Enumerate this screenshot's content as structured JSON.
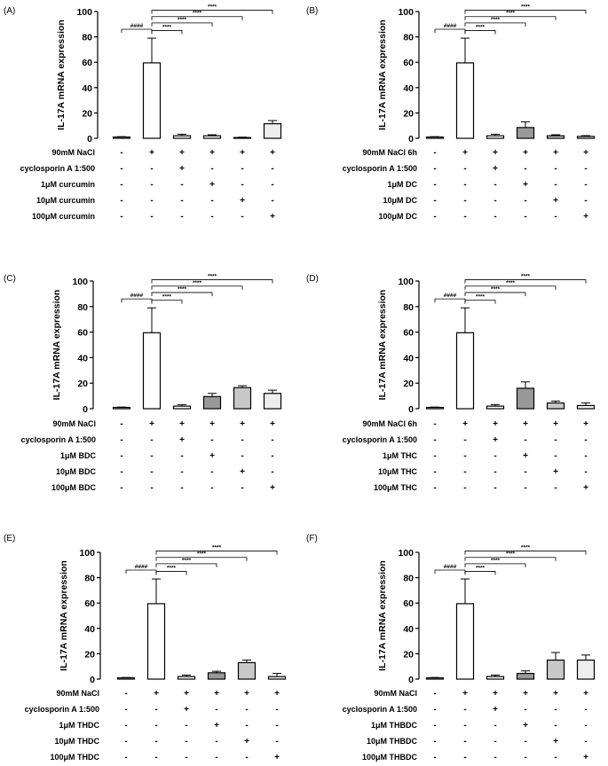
{
  "chart_data": [
    {
      "type": "bar",
      "panel": "(A)",
      "ylabel": "IL-17A mRNA expression",
      "ylim": [
        0,
        100
      ],
      "yticks": [
        0,
        20,
        40,
        60,
        80,
        100
      ],
      "values": [
        1,
        59.5,
        2,
        2,
        0.6,
        11.5
      ],
      "errors": [
        0.3,
        19.5,
        1.2,
        0.8,
        0.3,
        2.5
      ],
      "fills": [
        "#ffffff",
        "#ffffff",
        "#ffffff",
        "#ffffff",
        "#ffffff",
        "#eeeeee"
      ],
      "rows": [
        {
          "label": "90mM NaCl",
          "signs": [
            "-",
            "+",
            "+",
            "+",
            "+",
            "+"
          ]
        },
        {
          "label": "cyclosporin A 1:500",
          "signs": [
            "-",
            "-",
            "+",
            "-",
            "-",
            "-"
          ]
        },
        {
          "label": "1μM  curcumin",
          "signs": [
            "-",
            "-",
            "-",
            "+",
            "-",
            "-"
          ]
        },
        {
          "label": "10μM  curcumin",
          "signs": [
            "-",
            "-",
            "-",
            "-",
            "+",
            "-"
          ]
        },
        {
          "label": "100μM  curcumin",
          "signs": [
            "-",
            "-",
            "-",
            "-",
            "-",
            "+"
          ]
        }
      ],
      "significance": [
        {
          "from": 0,
          "to": 1,
          "label": "####",
          "y": 86
        },
        {
          "from": 1,
          "to": 2,
          "label": "****",
          "y": 85
        },
        {
          "from": 1,
          "to": 3,
          "label": "****",
          "y": 91
        },
        {
          "from": 1,
          "to": 4,
          "label": "****",
          "y": 96
        },
        {
          "from": 1,
          "to": 5,
          "label": "****",
          "y": 101
        }
      ]
    },
    {
      "type": "bar",
      "panel": "(B)",
      "ylabel": "IL-17A mRNA expression",
      "ylim": [
        0,
        100
      ],
      "yticks": [
        0,
        20,
        40,
        60,
        80,
        100
      ],
      "values": [
        1,
        59.5,
        2,
        8.5,
        2,
        1.5
      ],
      "errors": [
        0.3,
        19.5,
        1.2,
        4.5,
        0.8,
        0.6
      ],
      "fills": [
        "#ffffff",
        "#ffffff",
        "#ffffff",
        "#999999",
        "#c8c8c8",
        "#eeeeee"
      ],
      "rows": [
        {
          "label": "90mM NaCl 6h",
          "signs": [
            "-",
            "+",
            "+",
            "+",
            "+",
            "+"
          ]
        },
        {
          "label": "cyclosporin A 1:500",
          "signs": [
            "-",
            "-",
            "+",
            "-",
            "-",
            "-"
          ]
        },
        {
          "label": "1μM  DC",
          "signs": [
            "-",
            "-",
            "-",
            "+",
            "-",
            "-"
          ]
        },
        {
          "label": "10μM  DC",
          "signs": [
            "-",
            "-",
            "-",
            "-",
            "+",
            "-"
          ]
        },
        {
          "label": "100μM  DC",
          "signs": [
            "-",
            "-",
            "-",
            "-",
            "-",
            "+"
          ]
        }
      ],
      "significance": [
        {
          "from": 0,
          "to": 1,
          "label": "####",
          "y": 86
        },
        {
          "from": 1,
          "to": 2,
          "label": "****",
          "y": 85
        },
        {
          "from": 1,
          "to": 3,
          "label": "****",
          "y": 91
        },
        {
          "from": 1,
          "to": 4,
          "label": "****",
          "y": 96
        },
        {
          "from": 1,
          "to": 5,
          "label": "****",
          "y": 101
        }
      ]
    },
    {
      "type": "bar",
      "panel": "(C)",
      "ylabel": "IL-17A mRNA expression",
      "ylim": [
        0,
        100
      ],
      "yticks": [
        0,
        20,
        40,
        60,
        80,
        100
      ],
      "values": [
        1,
        59.5,
        2,
        9.5,
        16.5,
        12
      ],
      "errors": [
        0.3,
        19.5,
        1.2,
        2.5,
        1.5,
        2.5
      ],
      "fills": [
        "#ffffff",
        "#ffffff",
        "#ffffff",
        "#999999",
        "#c8c8c8",
        "#eeeeee"
      ],
      "rows": [
        {
          "label": "90mM NaCl",
          "signs": [
            "-",
            "+",
            "+",
            "+",
            "+",
            "+"
          ]
        },
        {
          "label": "cyclosporin A 1:500",
          "signs": [
            "-",
            "-",
            "+",
            "-",
            "-",
            "-"
          ]
        },
        {
          "label": "1μM  BDC",
          "signs": [
            "-",
            "-",
            "-",
            "+",
            "-",
            "-"
          ]
        },
        {
          "label": "10μM  BDC",
          "signs": [
            "-",
            "-",
            "-",
            "-",
            "+",
            "-"
          ]
        },
        {
          "label": "100μM  BDC",
          "signs": [
            "-",
            "-",
            "-",
            "-",
            "-",
            "+"
          ]
        }
      ],
      "significance": [
        {
          "from": 0,
          "to": 1,
          "label": "####",
          "y": 86
        },
        {
          "from": 1,
          "to": 2,
          "label": "****",
          "y": 85
        },
        {
          "from": 1,
          "to": 3,
          "label": "****",
          "y": 91
        },
        {
          "from": 1,
          "to": 4,
          "label": "****",
          "y": 96
        },
        {
          "from": 1,
          "to": 5,
          "label": "****",
          "y": 101
        }
      ]
    },
    {
      "type": "bar",
      "panel": "(D)",
      "ylabel": "IL-17A mRNA expression",
      "ylim": [
        0,
        100
      ],
      "yticks": [
        0,
        20,
        40,
        60,
        80,
        100
      ],
      "values": [
        1,
        59.5,
        2,
        16,
        4.5,
        2.5
      ],
      "errors": [
        0.3,
        19.5,
        1.2,
        5,
        1.5,
        2
      ],
      "fills": [
        "#ffffff",
        "#ffffff",
        "#ffffff",
        "#999999",
        "#c8c8c8",
        "#eeeeee"
      ],
      "rows": [
        {
          "label": "90mM NaCl 6h",
          "signs": [
            "-",
            "+",
            "+",
            "+",
            "+",
            "+"
          ]
        },
        {
          "label": "cyclosporin A 1:500",
          "signs": [
            "-",
            "-",
            "+",
            "-",
            "-",
            "-"
          ]
        },
        {
          "label": "1μM  THC",
          "signs": [
            "-",
            "-",
            "-",
            "+",
            "-",
            "-"
          ]
        },
        {
          "label": "10μM  THC",
          "signs": [
            "-",
            "-",
            "-",
            "-",
            "+",
            "-"
          ]
        },
        {
          "label": "100μM  THC",
          "signs": [
            "-",
            "-",
            "-",
            "-",
            "-",
            "+"
          ]
        }
      ],
      "significance": [
        {
          "from": 0,
          "to": 1,
          "label": "####",
          "y": 86
        },
        {
          "from": 1,
          "to": 2,
          "label": "****",
          "y": 85
        },
        {
          "from": 1,
          "to": 3,
          "label": "****",
          "y": 91
        },
        {
          "from": 1,
          "to": 4,
          "label": "****",
          "y": 96
        },
        {
          "from": 1,
          "to": 5,
          "label": "****",
          "y": 101
        }
      ]
    },
    {
      "type": "bar",
      "panel": "(E)",
      "ylabel": "IL-17A mRNA expression",
      "ylim": [
        0,
        100
      ],
      "yticks": [
        0,
        20,
        40,
        60,
        80,
        100
      ],
      "values": [
        1,
        59.5,
        2,
        5,
        13,
        2
      ],
      "errors": [
        0.3,
        19.5,
        1.2,
        1.2,
        2,
        2.5
      ],
      "fills": [
        "#ffffff",
        "#ffffff",
        "#ffffff",
        "#999999",
        "#c8c8c8",
        "#eeeeee"
      ],
      "rows": [
        {
          "label": "90mM NaCl",
          "signs": [
            "-",
            "+",
            "+",
            "+",
            "+",
            "+"
          ]
        },
        {
          "label": "cyclosporin A 1:500",
          "signs": [
            "-",
            "-",
            "+",
            "-",
            "-",
            "-"
          ]
        },
        {
          "label": "1μM  THDC",
          "signs": [
            "-",
            "-",
            "-",
            "+",
            "-",
            "-"
          ]
        },
        {
          "label": "10μM  THDC",
          "signs": [
            "-",
            "-",
            "-",
            "-",
            "+",
            "-"
          ]
        },
        {
          "label": "100μM  THDC",
          "signs": [
            "-",
            "-",
            "-",
            "-",
            "-",
            "+"
          ]
        }
      ],
      "significance": [
        {
          "from": 0,
          "to": 1,
          "label": "####",
          "y": 86
        },
        {
          "from": 1,
          "to": 2,
          "label": "****",
          "y": 85
        },
        {
          "from": 1,
          "to": 3,
          "label": "****",
          "y": 91
        },
        {
          "from": 1,
          "to": 4,
          "label": "****",
          "y": 96
        },
        {
          "from": 1,
          "to": 5,
          "label": "****",
          "y": 101
        }
      ]
    },
    {
      "type": "bar",
      "panel": "(F)",
      "ylabel": "IL-17A mRNA expression",
      "ylim": [
        0,
        100
      ],
      "yticks": [
        0,
        20,
        40,
        60,
        80,
        100
      ],
      "values": [
        1,
        59.5,
        2,
        4.5,
        15,
        15
      ],
      "errors": [
        0.3,
        19.5,
        1.2,
        2,
        6,
        4
      ],
      "fills": [
        "#ffffff",
        "#ffffff",
        "#ffffff",
        "#999999",
        "#c8c8c8",
        "#eeeeee"
      ],
      "rows": [
        {
          "label": "90mM NaCl",
          "signs": [
            "-",
            "+",
            "+",
            "+",
            "+",
            "+"
          ]
        },
        {
          "label": "cyclosporin A 1:500",
          "signs": [
            "-",
            "-",
            "+",
            "-",
            "-",
            "-"
          ]
        },
        {
          "label": "1μM  THBDC",
          "signs": [
            "-",
            "-",
            "-",
            "+",
            "-",
            "-"
          ]
        },
        {
          "label": "10μM  THBDC",
          "signs": [
            "-",
            "-",
            "-",
            "-",
            "+",
            "-"
          ]
        },
        {
          "label": "100μM  THBDC",
          "signs": [
            "-",
            "-",
            "-",
            "-",
            "-",
            "+"
          ]
        }
      ],
      "significance": [
        {
          "from": 0,
          "to": 1,
          "label": "####",
          "y": 86
        },
        {
          "from": 1,
          "to": 2,
          "label": "****",
          "y": 85
        },
        {
          "from": 1,
          "to": 3,
          "label": "****",
          "y": 91
        },
        {
          "from": 1,
          "to": 4,
          "label": "****",
          "y": 96
        },
        {
          "from": 1,
          "to": 5,
          "label": "****",
          "y": 101
        }
      ]
    }
  ]
}
